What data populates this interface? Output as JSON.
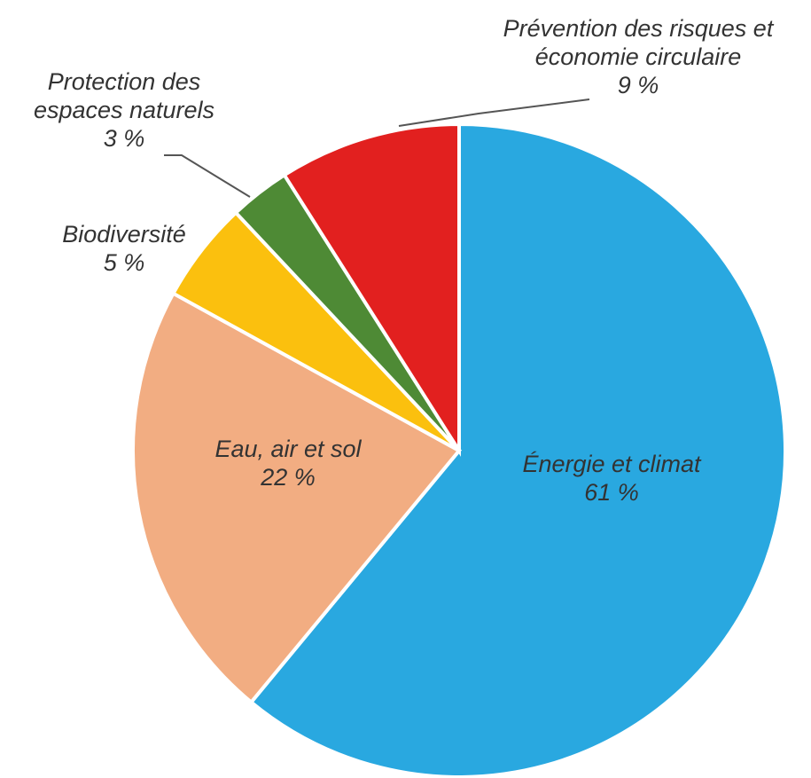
{
  "chart_data": {
    "type": "pie",
    "categories": [
      "Énergie et climat",
      "Eau, air et sol",
      "Biodiversité",
      "Protection des espaces naturels",
      "Prévention des risques et économie circulaire"
    ],
    "values": [
      61,
      22,
      5,
      3,
      9
    ],
    "value_labels": [
      "61 %",
      "22 %",
      "5 %",
      "3 %",
      "9 %"
    ],
    "colors": [
      "#29a8e0",
      "#f2ad82",
      "#fbc00e",
      "#4e8a35",
      "#e2201f"
    ]
  }
}
